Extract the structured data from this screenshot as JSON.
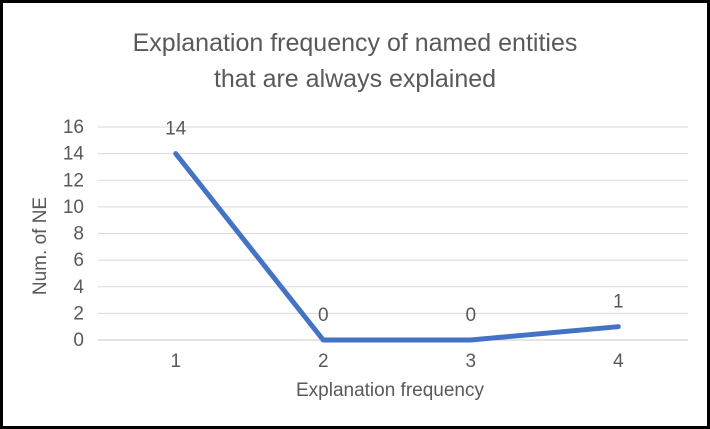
{
  "chart_data": {
    "type": "line",
    "title": "Explanation frequency of named entities that are always explained",
    "title_lines": [
      "Explanation frequency of named entities",
      "that are always explained"
    ],
    "xlabel": "Explanation frequency",
    "ylabel": "Num. of NE",
    "categories": [
      "1",
      "2",
      "3",
      "4"
    ],
    "values": [
      14,
      0,
      0,
      1
    ],
    "data_labels": [
      "14",
      "0",
      "0",
      "1"
    ],
    "ylim": [
      0,
      16
    ],
    "yticks": [
      0,
      2,
      4,
      6,
      8,
      10,
      12,
      14,
      16
    ],
    "grid": "horizontal",
    "legend": "none",
    "colors": {
      "line": "#4472C4",
      "gridline": "#D9D9D9",
      "axis_line": "#C9C9C9",
      "text": "#595959",
      "background": "#FFFFFF",
      "border": "#000000"
    }
  }
}
